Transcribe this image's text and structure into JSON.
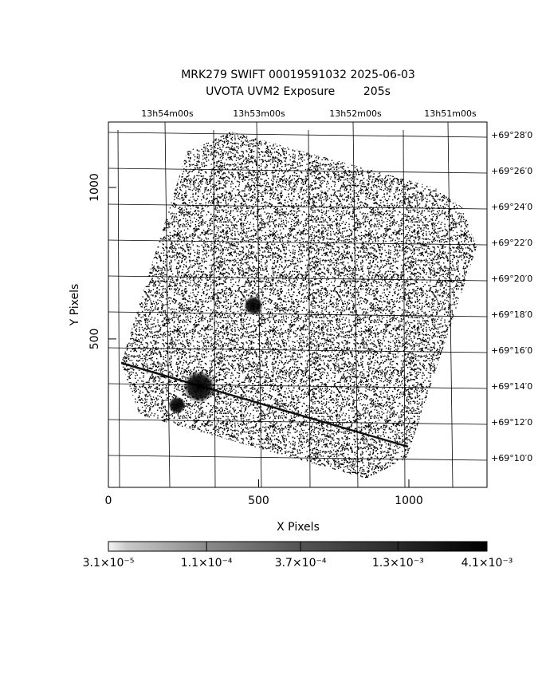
{
  "chart_data": {
    "type": "image",
    "title": "MRK279 SWIFT 00019591032 2025-06-03",
    "subtitle": "UVOTA UVM2 Exposure        205s",
    "x_label": "X Pixels",
    "y_label": "Y Pixels",
    "xlim": [
      0,
      1260
    ],
    "xticks": [
      0,
      500,
      1000
    ],
    "ylim": [
      10,
      1216
    ],
    "yticks": [
      500,
      1000
    ],
    "top_axis_labels": [
      "13h54m00s",
      "13h53m00s",
      "13h52m00s",
      "13h51m00s"
    ],
    "right_axis_labels": [
      "+69°28′0",
      "+69°26′0",
      "+69°24′0",
      "+69°22′0",
      "+69°20′0",
      "+69°18′0",
      "+69°16′0",
      "+69°14′0",
      "+69°12′0",
      "+69°10′0"
    ],
    "colorbar": {
      "scale": "log",
      "lim": [
        3.1e-05,
        0.0041
      ],
      "ticks": [
        {
          "value": 3.1e-05,
          "label": "3.1×10⁻⁵"
        },
        {
          "value": 0.00011,
          "label": "1.1×10⁻⁴"
        },
        {
          "value": 0.00037,
          "label": "3.7×10⁻⁴"
        },
        {
          "value": 0.0013,
          "label": "1.3×10⁻³"
        },
        {
          "value": 0.0041,
          "label": "4.1×10⁻³"
        }
      ]
    }
  }
}
